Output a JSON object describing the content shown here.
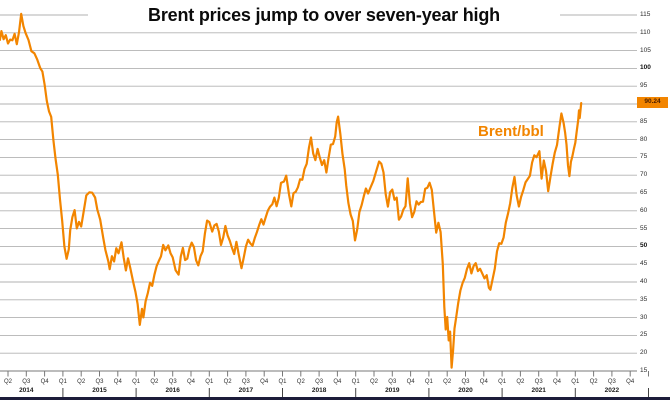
{
  "title": "Brent prices jump to over seven-year high",
  "series_label": "Brent/bbl",
  "last_price_badge": "90.24",
  "colors": {
    "line": "#f28500",
    "badge_bg": "#f28500",
    "badge_text": "#4a1d00",
    "grid": "#b2b2b2",
    "axis": "#787878",
    "title_text": "#0b0b0b",
    "tick_text": "#2b2b2b",
    "footer_bar": "#1c1c3a"
  },
  "y_axis": {
    "min": 15,
    "max": 115,
    "step": 5,
    "visible_labels": [
      115,
      110,
      105,
      100,
      95,
      85,
      80,
      75,
      70,
      65,
      60,
      55,
      50,
      45,
      40,
      35,
      30,
      25,
      20,
      15
    ],
    "bold_labels": [
      100,
      50
    ],
    "label_replaced_by_badge": 90
  },
  "x_axis": {
    "first_quarter": "2014-Q2",
    "last_quarter": "2022-Q4",
    "quarter_names": [
      "Q1",
      "Q2",
      "Q3",
      "Q4"
    ],
    "years": [
      "2014",
      "2015",
      "2016",
      "2017",
      "2018",
      "2019",
      "2020",
      "2021",
      "2022"
    ]
  },
  "chart_data": {
    "type": "line",
    "title": "Brent prices jump to over seven-year high",
    "unit": "$/bbl",
    "legend_position": "inside-right",
    "grid": "horizontal-only",
    "x_range": [
      "2014-02",
      "2022-01"
    ],
    "ylim": [
      15,
      115
    ],
    "last_value": 90.24,
    "series": [
      {
        "name": "Brent/bbl",
        "points": [
          [
            2014.14,
            108
          ],
          [
            2014.16,
            110.5
          ],
          [
            2014.19,
            108
          ],
          [
            2014.22,
            109
          ],
          [
            2014.25,
            107.5
          ],
          [
            2014.28,
            108.5
          ],
          [
            2014.31,
            107
          ],
          [
            2014.34,
            109.5
          ],
          [
            2014.37,
            108
          ],
          [
            2014.4,
            110
          ],
          [
            2014.43,
            114.8
          ],
          [
            2014.46,
            112.5
          ],
          [
            2014.49,
            111
          ],
          [
            2014.53,
            108
          ],
          [
            2014.57,
            106
          ],
          [
            2014.61,
            104.5
          ],
          [
            2014.65,
            103
          ],
          [
            2014.69,
            101
          ],
          [
            2014.72,
            98
          ],
          [
            2014.75,
            95
          ],
          [
            2014.78,
            92
          ],
          [
            2014.81,
            88
          ],
          [
            2014.84,
            85.5
          ],
          [
            2014.87,
            80
          ],
          [
            2014.9,
            75
          ],
          [
            2014.93,
            70
          ],
          [
            2014.96,
            63
          ],
          [
            2014.99,
            57
          ],
          [
            2015.02,
            50
          ],
          [
            2015.05,
            47
          ],
          [
            2015.08,
            49
          ],
          [
            2015.1,
            55
          ],
          [
            2015.13,
            58
          ],
          [
            2015.16,
            60
          ],
          [
            2015.19,
            55
          ],
          [
            2015.22,
            57
          ],
          [
            2015.25,
            56
          ],
          [
            2015.28,
            59
          ],
          [
            2015.32,
            63
          ],
          [
            2015.36,
            65
          ],
          [
            2015.4,
            64
          ],
          [
            2015.44,
            63
          ],
          [
            2015.47,
            61
          ],
          [
            2015.51,
            57
          ],
          [
            2015.55,
            53
          ],
          [
            2015.58,
            50
          ],
          [
            2015.62,
            46
          ],
          [
            2015.64,
            43
          ],
          [
            2015.67,
            48
          ],
          [
            2015.7,
            46
          ],
          [
            2015.73,
            49
          ],
          [
            2015.76,
            48
          ],
          [
            2015.8,
            50
          ],
          [
            2015.83,
            47
          ],
          [
            2015.86,
            44.5
          ],
          [
            2015.89,
            46
          ],
          [
            2015.92,
            43
          ],
          [
            2015.96,
            40
          ],
          [
            2015.99,
            37.5
          ],
          [
            2016.02,
            34
          ],
          [
            2016.05,
            28
          ],
          [
            2016.08,
            32
          ],
          [
            2016.1,
            30
          ],
          [
            2016.13,
            34
          ],
          [
            2016.16,
            37
          ],
          [
            2016.19,
            40
          ],
          [
            2016.22,
            39
          ],
          [
            2016.25,
            42
          ],
          [
            2016.28,
            44
          ],
          [
            2016.31,
            46
          ],
          [
            2016.34,
            48
          ],
          [
            2016.37,
            50
          ],
          [
            2016.4,
            48
          ],
          [
            2016.44,
            50.5
          ],
          [
            2016.47,
            49
          ],
          [
            2016.5,
            46.5
          ],
          [
            2016.54,
            44
          ],
          [
            2016.58,
            42
          ],
          [
            2016.61,
            46
          ],
          [
            2016.64,
            50
          ],
          [
            2016.67,
            47
          ],
          [
            2016.7,
            46
          ],
          [
            2016.73,
            49
          ],
          [
            2016.76,
            51.5
          ],
          [
            2016.79,
            50
          ],
          [
            2016.82,
            46
          ],
          [
            2016.85,
            44.5
          ],
          [
            2016.88,
            47
          ],
          [
            2016.91,
            49
          ],
          [
            2016.94,
            54
          ],
          [
            2016.97,
            56.5
          ],
          [
            2017.0,
            56.5
          ],
          [
            2017.04,
            55
          ],
          [
            2017.07,
            56.5
          ],
          [
            2017.1,
            55.5
          ],
          [
            2017.13,
            54
          ],
          [
            2017.16,
            51
          ],
          [
            2017.19,
            52.5
          ],
          [
            2017.22,
            55.5
          ],
          [
            2017.25,
            53
          ],
          [
            2017.28,
            51.5
          ],
          [
            2017.31,
            50
          ],
          [
            2017.34,
            48
          ],
          [
            2017.37,
            50.5
          ],
          [
            2017.4,
            48
          ],
          [
            2017.44,
            45
          ],
          [
            2017.47,
            47
          ],
          [
            2017.5,
            49
          ],
          [
            2017.53,
            52
          ],
          [
            2017.56,
            51.5
          ],
          [
            2017.59,
            50
          ],
          [
            2017.62,
            52
          ],
          [
            2017.65,
            54
          ],
          [
            2017.68,
            56
          ],
          [
            2017.71,
            58
          ],
          [
            2017.74,
            56
          ],
          [
            2017.77,
            57.5
          ],
          [
            2017.8,
            60.5
          ],
          [
            2017.83,
            62
          ],
          [
            2017.86,
            61
          ],
          [
            2017.89,
            63
          ],
          [
            2017.92,
            62.5
          ],
          [
            2017.95,
            64
          ],
          [
            2017.98,
            66.5
          ],
          [
            2018.02,
            68
          ],
          [
            2018.05,
            70
          ],
          [
            2018.09,
            64
          ],
          [
            2018.12,
            62.5
          ],
          [
            2018.15,
            65
          ],
          [
            2018.18,
            64
          ],
          [
            2018.21,
            67
          ],
          [
            2018.24,
            70
          ],
          [
            2018.27,
            68
          ],
          [
            2018.3,
            71
          ],
          [
            2018.33,
            74
          ],
          [
            2018.36,
            78
          ],
          [
            2018.39,
            80
          ],
          [
            2018.42,
            76
          ],
          [
            2018.45,
            74.5
          ],
          [
            2018.48,
            77.5
          ],
          [
            2018.51,
            75
          ],
          [
            2018.54,
            72.5
          ],
          [
            2018.57,
            74
          ],
          [
            2018.6,
            71.5
          ],
          [
            2018.63,
            75
          ],
          [
            2018.66,
            77.5
          ],
          [
            2018.69,
            79
          ],
          [
            2018.72,
            82
          ],
          [
            2018.74,
            84.5
          ],
          [
            2018.76,
            86.5
          ],
          [
            2018.79,
            81
          ],
          [
            2018.82,
            76
          ],
          [
            2018.85,
            72
          ],
          [
            2018.87,
            66
          ],
          [
            2018.9,
            62
          ],
          [
            2018.93,
            60
          ],
          [
            2018.96,
            57
          ],
          [
            2018.99,
            51
          ],
          [
            2019.02,
            55
          ],
          [
            2019.05,
            60
          ],
          [
            2019.08,
            61.5
          ],
          [
            2019.11,
            64
          ],
          [
            2019.14,
            66
          ],
          [
            2019.17,
            65
          ],
          [
            2019.2,
            67
          ],
          [
            2019.24,
            68.5
          ],
          [
            2019.28,
            71
          ],
          [
            2019.32,
            74.5
          ],
          [
            2019.35,
            72
          ],
          [
            2019.38,
            70.5
          ],
          [
            2019.41,
            66
          ],
          [
            2019.44,
            61
          ],
          [
            2019.47,
            64
          ],
          [
            2019.5,
            66.5
          ],
          [
            2019.53,
            64
          ],
          [
            2019.56,
            63
          ],
          [
            2019.59,
            57
          ],
          [
            2019.62,
            59
          ],
          [
            2019.65,
            60.5
          ],
          [
            2019.68,
            61
          ],
          [
            2019.71,
            69
          ],
          [
            2019.74,
            62
          ],
          [
            2019.77,
            58.5
          ],
          [
            2019.8,
            60
          ],
          [
            2019.83,
            62
          ],
          [
            2019.86,
            61.5
          ],
          [
            2019.89,
            63.5
          ],
          [
            2019.92,
            62.5
          ],
          [
            2019.95,
            65
          ],
          [
            2019.98,
            67
          ],
          [
            2020.01,
            69
          ],
          [
            2020.04,
            65
          ],
          [
            2020.07,
            59
          ],
          [
            2020.1,
            55
          ],
          [
            2020.13,
            57
          ],
          [
            2020.16,
            53
          ],
          [
            2020.19,
            45
          ],
          [
            2020.21,
            34
          ],
          [
            2020.23,
            26
          ],
          [
            2020.25,
            30
          ],
          [
            2020.27,
            23
          ],
          [
            2020.29,
            27
          ],
          [
            2020.31,
            16
          ],
          [
            2020.33,
            21
          ],
          [
            2020.35,
            26
          ],
          [
            2020.37,
            30
          ],
          [
            2020.4,
            34
          ],
          [
            2020.43,
            37
          ],
          [
            2020.46,
            40
          ],
          [
            2020.49,
            42
          ],
          [
            2020.52,
            43
          ],
          [
            2020.55,
            44.5
          ],
          [
            2020.58,
            43.5
          ],
          [
            2020.61,
            45
          ],
          [
            2020.64,
            44
          ],
          [
            2020.67,
            43
          ],
          [
            2020.7,
            45
          ],
          [
            2020.73,
            42
          ],
          [
            2020.76,
            40
          ],
          [
            2020.79,
            42.5
          ],
          [
            2020.82,
            39
          ],
          [
            2020.84,
            36.5
          ],
          [
            2020.87,
            41
          ],
          [
            2020.9,
            45
          ],
          [
            2020.93,
            48
          ],
          [
            2020.96,
            50
          ],
          [
            2020.99,
            51.5
          ],
          [
            2021.02,
            53
          ],
          [
            2021.05,
            56
          ],
          [
            2021.08,
            59
          ],
          [
            2021.11,
            62.5
          ],
          [
            2021.14,
            66.5
          ],
          [
            2021.17,
            69.5
          ],
          [
            2021.2,
            64
          ],
          [
            2021.23,
            61
          ],
          [
            2021.26,
            64.5
          ],
          [
            2021.29,
            66
          ],
          [
            2021.32,
            67
          ],
          [
            2021.35,
            69
          ],
          [
            2021.38,
            71
          ],
          [
            2021.41,
            73
          ],
          [
            2021.44,
            74.5
          ],
          [
            2021.47,
            76
          ],
          [
            2021.51,
            77.2
          ],
          [
            2021.54,
            69
          ],
          [
            2021.57,
            74
          ],
          [
            2021.6,
            71
          ],
          [
            2021.63,
            65.5
          ],
          [
            2021.66,
            70
          ],
          [
            2021.69,
            73
          ],
          [
            2021.72,
            75.5
          ],
          [
            2021.75,
            79
          ],
          [
            2021.78,
            84
          ],
          [
            2021.81,
            86.4
          ],
          [
            2021.84,
            84
          ],
          [
            2021.86,
            82.5
          ],
          [
            2021.88,
            79
          ],
          [
            2021.9,
            73
          ],
          [
            2021.92,
            69
          ],
          [
            2021.94,
            73.5
          ],
          [
            2021.96,
            75.5
          ],
          [
            2021.98,
            78
          ],
          [
            2022.0,
            79
          ],
          [
            2022.02,
            82
          ],
          [
            2022.04,
            85
          ],
          [
            2022.05,
            87.5
          ],
          [
            2022.06,
            86.5
          ],
          [
            2022.08,
            90.24
          ]
        ]
      }
    ]
  }
}
